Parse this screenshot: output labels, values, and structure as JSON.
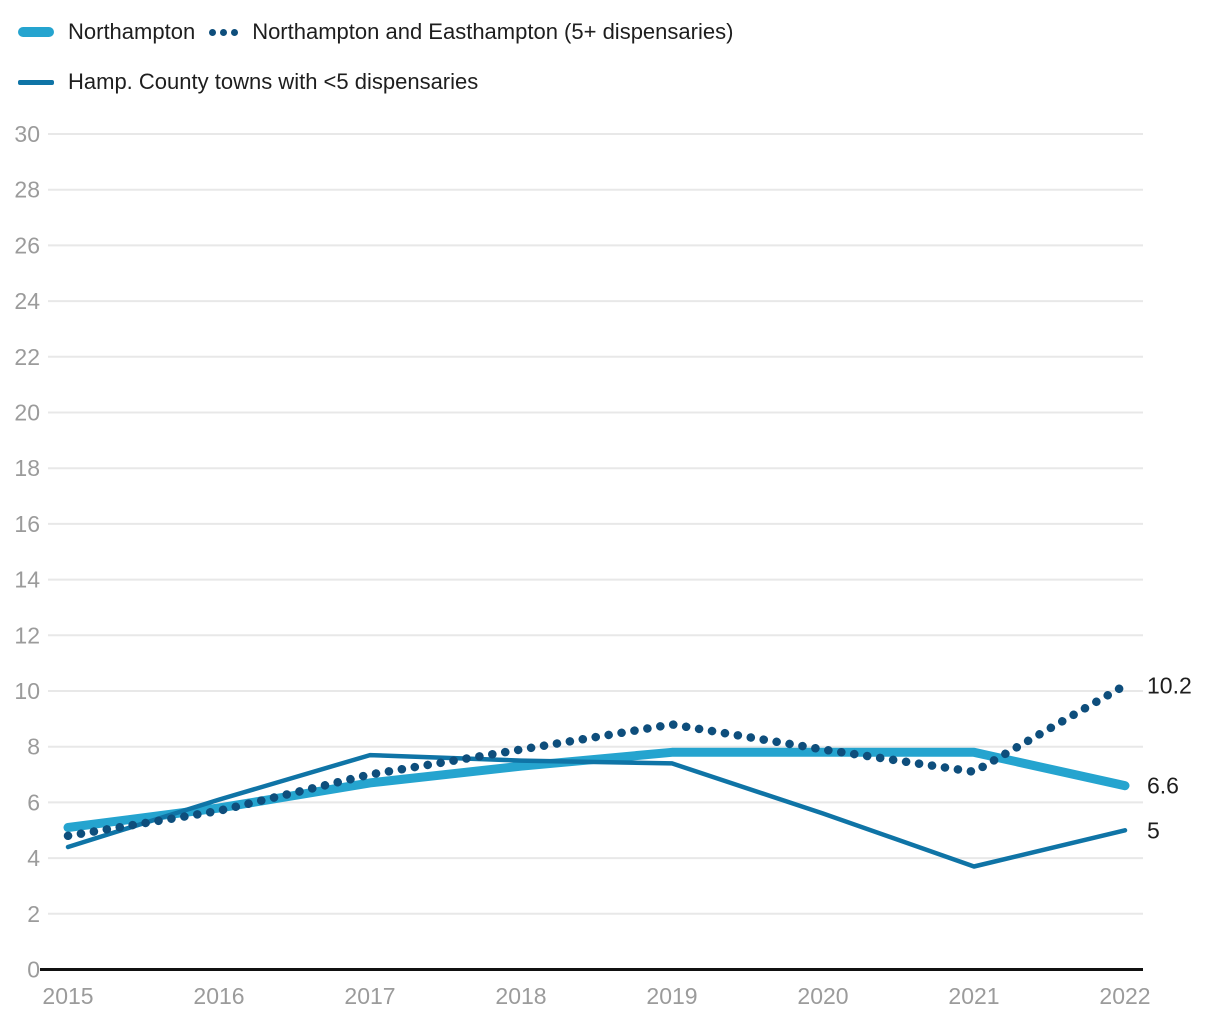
{
  "legend": {
    "items": [
      {
        "label": "Northampton",
        "swatch": "thick-line",
        "color": "#25A4CF"
      },
      {
        "label": "Northampton and Easthampton (5+ dispensaries)",
        "swatch": "dotted-line",
        "color": "#0E4E7C"
      },
      {
        "label": "Hamp. County towns with <5 dispensaries",
        "swatch": "thin-line",
        "color": "#0F74A6"
      }
    ]
  },
  "chart_data": {
    "type": "line",
    "x": [
      2015,
      2016,
      2017,
      2018,
      2019,
      2020,
      2021,
      2022
    ],
    "x_tick_labels": [
      "2015",
      "2016",
      "2017",
      "2018",
      "2019",
      "2020",
      "2021",
      "2022"
    ],
    "y_ticks": [
      0,
      2,
      4,
      6,
      8,
      10,
      12,
      14,
      16,
      18,
      20,
      22,
      24,
      26,
      28,
      30
    ],
    "ylim": [
      0,
      30
    ],
    "grid": true,
    "legend_position": "top-left",
    "series": [
      {
        "name": "Northampton",
        "style": "thick",
        "color": "#25A4CF",
        "values": [
          5.1,
          5.8,
          6.7,
          7.3,
          7.8,
          7.8,
          7.8,
          6.6
        ],
        "end_label": "6.6"
      },
      {
        "name": "Hamp. County towns with <5 dispensaries",
        "style": "thin",
        "color": "#0F74A6",
        "values": [
          4.4,
          6.1,
          7.7,
          7.5,
          7.4,
          5.6,
          3.7,
          5.0
        ],
        "end_label": "5"
      },
      {
        "name": "Northampton and Easthampton (5+ dispensaries)",
        "style": "dotted",
        "color": "#0E4E7C",
        "values": [
          4.8,
          5.7,
          7.0,
          7.9,
          8.8,
          7.9,
          7.1,
          10.2
        ],
        "end_label": "10.2"
      }
    ],
    "colors": {
      "gridline": "#e8e8e8",
      "axis": "#111111",
      "tick_text": "#9b9b9b",
      "end_label_text": "#1e1e1e",
      "background": "#ffffff"
    }
  }
}
